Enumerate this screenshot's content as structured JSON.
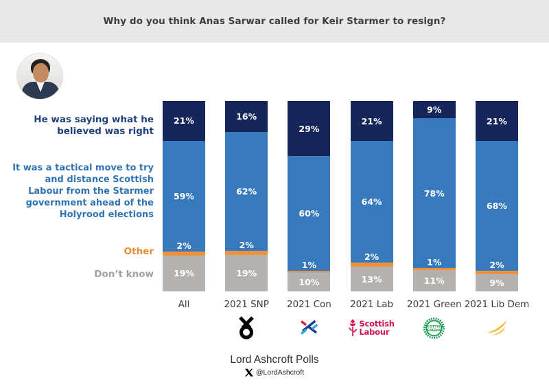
{
  "title": "Why do you think Anas Sarwar called for Keir Starmer to resign?",
  "chart_data": {
    "type": "bar",
    "variant": "100%-stacked-column",
    "title": "Why do you think Anas Sarwar called for Keir Starmer to resign?",
    "categories": [
      "All",
      "2021 SNP",
      "2021 Con",
      "2021 Lab",
      "2021 Green",
      "2021 Lib Dem"
    ],
    "series": [
      {
        "name": "He was saying what he believed was right",
        "color": "#14265a",
        "label_color": "#20417c",
        "values": [
          21,
          16,
          29,
          21,
          9,
          21
        ]
      },
      {
        "name": "It was a tactical move to try and distance Scottish Labour from the Starmer government ahead of the Holyrood elections",
        "color": "#3679bd",
        "label_color": "#2e74b5",
        "values": [
          59,
          62,
          60,
          64,
          78,
          68
        ]
      },
      {
        "name": "Other",
        "color": "#f0913c",
        "label_color": "#e88a31",
        "values": [
          2,
          2,
          1,
          2,
          1,
          2
        ]
      },
      {
        "name": "Don’t know",
        "color": "#b4b1ae",
        "label_color": "#a2a09c",
        "values": [
          19,
          19,
          10,
          13,
          11,
          9
        ]
      }
    ],
    "value_suffix": "%",
    "value_label_color": "#ffffff",
    "legend_position": "left",
    "grid": false,
    "ylim": [
      0,
      100
    ]
  },
  "party_logos": [
    {
      "key": "none",
      "alt": ""
    },
    {
      "key": "snp",
      "alt": "SNP",
      "color": "#000000"
    },
    {
      "key": "con",
      "alt": "Scottish Conservatives",
      "color": "#1f3a93"
    },
    {
      "key": "lab",
      "alt": "Scottish Labour",
      "line1": "Scottish",
      "line2": "Labour",
      "color": "#d60b52"
    },
    {
      "key": "green",
      "alt": "Scottish Greens",
      "line1": "SCOTTISH",
      "line2": "GREENS",
      "color": "#14994a"
    },
    {
      "key": "libdem",
      "alt": "Liberal Democrats",
      "color": "#f4b12a"
    }
  ],
  "footer": {
    "brand": "Lord Ashcroft Polls",
    "x_handle": "@LordAshcroft"
  }
}
